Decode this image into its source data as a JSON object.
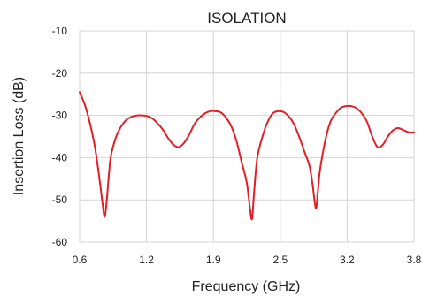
{
  "chart_data": {
    "type": "line",
    "title": "ISOLATION",
    "xlabel": "Frequency (GHz)",
    "ylabel": "Insertion Loss (dB)",
    "xlim": [
      0.6,
      3.8
    ],
    "ylim": [
      -60,
      -10
    ],
    "xticks": [
      "0.6",
      "1.2",
      "1.9",
      "2.5",
      "3.2",
      "3.8"
    ],
    "yticks": [
      "-10",
      "-20",
      "-30",
      "-40",
      "-50",
      "-60"
    ],
    "grid": true,
    "line_color": "#e41e26",
    "series": [
      {
        "x": [
          0.6,
          0.65,
          0.7,
          0.75,
          0.8,
          0.82,
          0.84,
          0.86,
          0.88,
          0.9,
          0.95,
          1.0,
          1.05,
          1.1,
          1.15,
          1.2,
          1.25,
          1.3,
          1.35,
          1.4,
          1.45,
          1.5,
          1.55,
          1.6,
          1.65,
          1.7,
          1.75,
          1.8,
          1.85,
          1.9,
          1.95,
          2.0,
          2.05,
          2.1,
          2.15,
          2.2,
          2.23,
          2.25,
          2.27,
          2.3,
          2.35,
          2.4,
          2.45,
          2.5,
          2.55,
          2.6,
          2.65,
          2.7,
          2.75,
          2.8,
          2.83,
          2.86,
          2.88,
          2.9,
          2.95,
          3.0,
          3.05,
          3.1,
          3.15,
          3.2,
          3.25,
          3.3,
          3.35,
          3.4,
          3.45,
          3.5,
          3.55,
          3.6,
          3.65,
          3.7,
          3.75,
          3.8
        ],
        "y": [
          -24.5,
          -27.5,
          -32,
          -38,
          -47,
          -51,
          -54,
          -50,
          -44,
          -39.5,
          -35,
          -32.5,
          -31,
          -30.3,
          -30,
          -30,
          -30.2,
          -30.8,
          -32,
          -33.5,
          -35.5,
          -37,
          -37.5,
          -36.5,
          -34.5,
          -32,
          -30.5,
          -29.5,
          -29,
          -29,
          -29.3,
          -30.5,
          -32.5,
          -36,
          -41,
          -46,
          -52,
          -54.5,
          -48,
          -40,
          -35,
          -31.5,
          -29.5,
          -29,
          -29.2,
          -30.2,
          -32,
          -35,
          -38.5,
          -42,
          -46.5,
          -52,
          -48,
          -43,
          -36,
          -31.5,
          -29.5,
          -28.2,
          -27.8,
          -27.8,
          -28.3,
          -29.5,
          -31.5,
          -35,
          -37.5,
          -37,
          -35,
          -33.5,
          -33,
          -33.5,
          -34,
          -34
        ]
      }
    ]
  }
}
